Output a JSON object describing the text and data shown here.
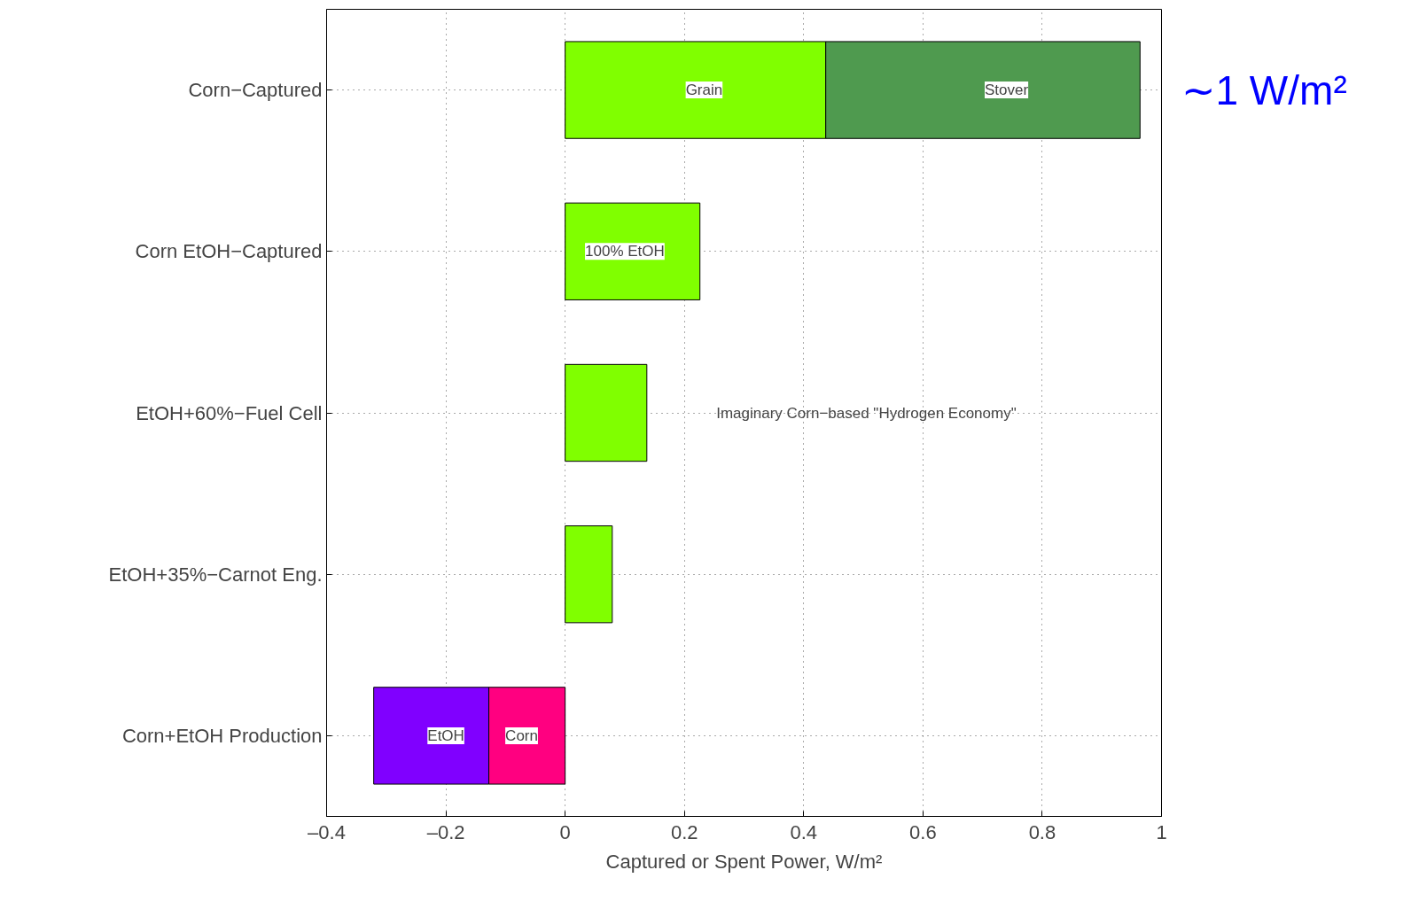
{
  "chart_data": {
    "type": "bar",
    "orientation": "horizontal",
    "stacked": true,
    "categories": [
      "Corn−Captured",
      "Corn EtOH−Captured",
      "EtOH+60%−Fuel Cell",
      "EtOH+35%−Carnot Eng.",
      "Corn+EtOH Production"
    ],
    "series": [
      {
        "colors": [
          "#80ff00",
          "#80ff00",
          "#80ff00",
          "#80ff00",
          "#ff0080"
        ],
        "values": [
          0.437,
          0.226,
          0.137,
          0.079,
          -0.128
        ]
      },
      {
        "colors": [
          "#4f9a4f",
          null,
          null,
          null,
          "#8000ff"
        ],
        "values": [
          0.527,
          null,
          null,
          null,
          -0.193
        ]
      }
    ],
    "xlabel": "Captured or Spent Power, W/m²",
    "xlim": [
      -0.4,
      1
    ],
    "xticks": [
      {
        "value": -0.4,
        "label": "–0.4"
      },
      {
        "value": -0.2,
        "label": "–0.2"
      },
      0,
      0.2,
      0.4,
      0.6,
      0.8,
      1
    ],
    "grid": true,
    "annotations": [
      "Grain",
      "Stover",
      "100% EtOH",
      "Imaginary Corn−based \"Hydrogen Economy\"",
      "EtOH",
      "Corn",
      "∼1 W/m²"
    ]
  }
}
